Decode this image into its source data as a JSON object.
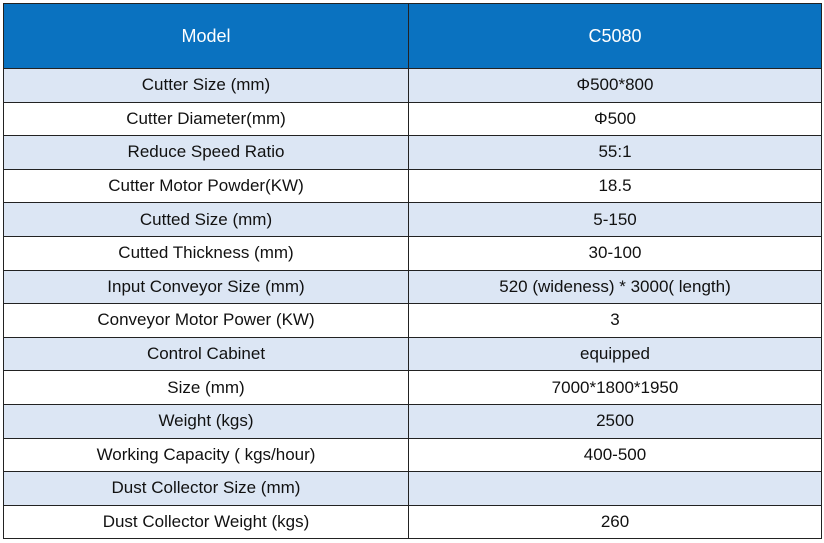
{
  "header": {
    "col1": "Model",
    "col2": "C5080"
  },
  "colors": {
    "header_bg": "#0a72c0",
    "odd_row_bg": "#dce6f4",
    "even_row_bg": "#ffffff"
  },
  "rows": [
    {
      "label": "Cutter Size (mm)",
      "value": "Φ500*800"
    },
    {
      "label": "Cutter Diameter(mm)",
      "value": "Φ500"
    },
    {
      "label": "Reduce Speed Ratio",
      "value": "55:1"
    },
    {
      "label": "Cutter Motor Powder(KW)",
      "value": "18.5"
    },
    {
      "label": "Cutted Size (mm)",
      "value": "5-150"
    },
    {
      "label": "Cutted Thickness (mm)",
      "value": "30-100"
    },
    {
      "label": "Input Conveyor Size (mm)",
      "value": "520 (wideness) * 3000( length)"
    },
    {
      "label": "Conveyor Motor Power (KW)",
      "value": "3"
    },
    {
      "label": "Control Cabinet",
      "value": "equipped"
    },
    {
      "label": "Size (mm)",
      "value": "7000*1800*1950"
    },
    {
      "label": "Weight (kgs)",
      "value": "2500"
    },
    {
      "label": "Working Capacity ( kgs/hour)",
      "value": "400-500"
    },
    {
      "label": "Dust Collector Size (mm)",
      "value": ""
    },
    {
      "label": "Dust Collector Weight (kgs)",
      "value": "260"
    }
  ]
}
